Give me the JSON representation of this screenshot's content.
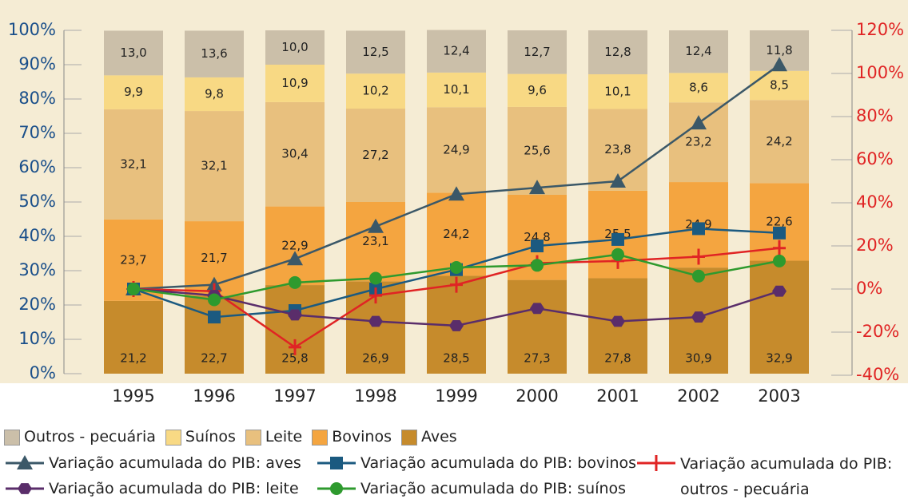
{
  "chart_data": {
    "type": "bar",
    "stacked": true,
    "categories": [
      "1995",
      "1996",
      "1997",
      "1998",
      "1999",
      "2000",
      "2001",
      "2002",
      "2003"
    ],
    "ylim": [
      0,
      100
    ],
    "yticks": [
      {
        "value": 0,
        "label": "0%"
      },
      {
        "value": 10,
        "label": "10%"
      },
      {
        "value": 20,
        "label": "20%"
      },
      {
        "value": 30,
        "label": "30%"
      },
      {
        "value": 40,
        "label": "40%"
      },
      {
        "value": 50,
        "label": "50%"
      },
      {
        "value": 60,
        "label": "60%"
      },
      {
        "value": 70,
        "label": "70%"
      },
      {
        "value": 80,
        "label": "80%"
      },
      {
        "value": 90,
        "label": "90%"
      },
      {
        "value": 100,
        "label": "100%"
      }
    ],
    "y2lim": [
      -40,
      120
    ],
    "y2ticks": [
      {
        "value": -40,
        "label": "-40%"
      },
      {
        "value": -20,
        "label": "-20%"
      },
      {
        "value": 0,
        "label": "0%"
      },
      {
        "value": 20,
        "label": "20%"
      },
      {
        "value": 40,
        "label": "40%"
      },
      {
        "value": 60,
        "label": "60%"
      },
      {
        "value": 80,
        "label": "80%"
      },
      {
        "value": 100,
        "label": "100%"
      },
      {
        "value": 120,
        "label": "120%"
      }
    ],
    "series": [
      {
        "name": "Aves",
        "type": "bar",
        "color": "#c68b2c",
        "values": [
          21.2,
          22.7,
          25.8,
          26.9,
          28.5,
          27.3,
          27.8,
          30.9,
          32.9
        ],
        "value_labels": [
          "21,2",
          "22,7",
          "25,8",
          "26,9",
          "28,5",
          "27,3",
          "27,8",
          "30,9",
          "32,9"
        ]
      },
      {
        "name": "Bovinos",
        "type": "bar",
        "color": "#f4a540",
        "values": [
          23.7,
          21.7,
          22.9,
          23.1,
          24.2,
          24.8,
          25.5,
          24.9,
          22.6
        ],
        "value_labels": [
          "23,7",
          "21,7",
          "22,9",
          "23,1",
          "24,2",
          "24,8",
          "25,5",
          "24,9",
          "22,6"
        ]
      },
      {
        "name": "Leite",
        "type": "bar",
        "color": "#e8c07e",
        "values": [
          32.1,
          32.1,
          30.4,
          27.2,
          24.9,
          25.6,
          23.8,
          23.2,
          24.2
        ],
        "value_labels": [
          "32,1",
          "32,1",
          "30,4",
          "27,2",
          "24,9",
          "25,6",
          "23,8",
          "23,2",
          "24,2"
        ]
      },
      {
        "name": "Suínos",
        "type": "bar",
        "color": "#f8d984",
        "values": [
          9.9,
          9.8,
          10.9,
          10.2,
          10.1,
          9.6,
          10.1,
          8.6,
          8.5
        ],
        "value_labels": [
          "9,9",
          "9,8",
          "10,9",
          "10,2",
          "10,1",
          "9,6",
          "10,1",
          "8,6",
          "8,5"
        ]
      },
      {
        "name": "Outros - pecuária",
        "type": "bar",
        "color": "#cbbfa9",
        "values": [
          13.0,
          13.6,
          10.0,
          12.5,
          12.4,
          12.7,
          12.8,
          12.4,
          11.8
        ],
        "value_labels": [
          "13,0",
          "13,6",
          "10,0",
          "12,5",
          "12,4",
          "12,7",
          "12,8",
          "12,4",
          "11,8"
        ]
      },
      {
        "name": "Variação acumulada do PIB: aves",
        "type": "line",
        "axis": "y2",
        "marker": "triangle",
        "color": "#3b5868",
        "values": [
          0,
          2,
          14,
          29,
          44,
          47,
          50,
          77,
          104
        ]
      },
      {
        "name": "Variação acumulada do PIB: bovinos",
        "type": "line",
        "axis": "y2",
        "marker": "square",
        "color": "#1b5a80",
        "values": [
          0,
          -13,
          -10,
          0,
          9,
          20,
          23,
          28,
          26
        ]
      },
      {
        "name": "Variação acumulada do PIB: outros - pecuária",
        "type": "line",
        "axis": "y2",
        "marker": "plus",
        "color": "#e02424",
        "values": [
          0,
          -1,
          -27,
          -3,
          2,
          12,
          13,
          15,
          19
        ]
      },
      {
        "name": "Variação acumulada do PIB: leite",
        "type": "line",
        "axis": "y2",
        "marker": "hexagon",
        "color": "#5a2d6a",
        "values": [
          0,
          -3,
          -12,
          -15,
          -17,
          -9,
          -15,
          -13,
          -1
        ]
      },
      {
        "name": "Variação acumulada do PIB: suínos",
        "type": "line",
        "axis": "y2",
        "marker": "circle",
        "color": "#2e9a2e",
        "values": [
          0,
          -5,
          3,
          5,
          10,
          11,
          16,
          6,
          13
        ]
      }
    ]
  }
}
